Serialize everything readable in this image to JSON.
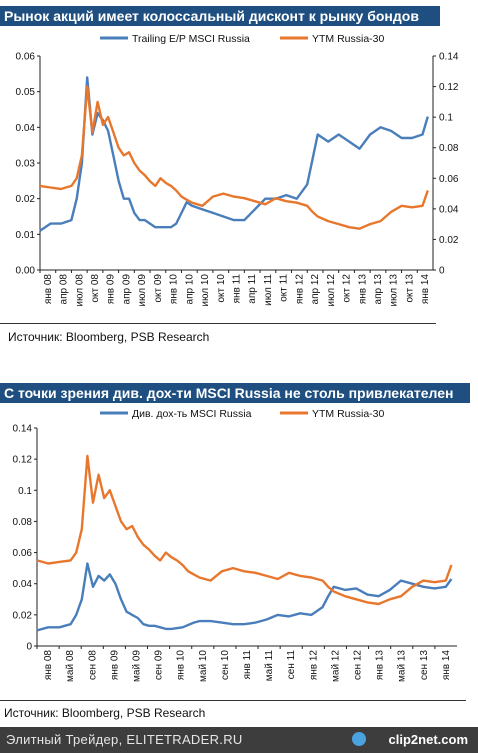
{
  "footer": {
    "text": "Элитный Трейдер, ELITETRADER.RU",
    "brand": "clip2net.com",
    "logo_icon": "clip2net-logo-icon"
  },
  "chart_data": [
    {
      "type": "line",
      "title": "Рынок акций имеет колоссальный дисконт к рынку бондов",
      "source": "Источник: Bloomberg, PSB Research",
      "x_labels": [
        "янв 08",
        "апр 08",
        "июл 08",
        "окт 08",
        "янв 09",
        "апр 09",
        "июл 09",
        "окт 09",
        "янв 10",
        "апр 10",
        "июл 10",
        "окт 10",
        "янв 11",
        "апр 11",
        "июл 11",
        "окт 11",
        "янв 12",
        "апр 12",
        "июл 12",
        "окт 12",
        "янв 13",
        "апр 13",
        "июл 13",
        "окт 13",
        "янв 14"
      ],
      "x_range": [
        "2008-01",
        "2014-04"
      ],
      "y_left": {
        "ticks": [
          "0.00",
          "0.01",
          "0.02",
          "0.03",
          "0.04",
          "0.05",
          "0.06"
        ],
        "range": [
          0,
          0.06
        ]
      },
      "y_right": {
        "ticks": [
          "0",
          "0.02",
          "0.04",
          "0.06",
          "0.08",
          "0.1",
          "0.12",
          "0.14"
        ],
        "range": [
          0,
          0.14
        ]
      },
      "legend_position": "top",
      "series": [
        {
          "name": "Trailing E/P MSCI Russia",
          "axis": "left",
          "color": "#4a7ebb",
          "points": [
            [
              "2008-01",
              0.011
            ],
            [
              "2008-03",
              0.013
            ],
            [
              "2008-05",
              0.013
            ],
            [
              "2008-07",
              0.014
            ],
            [
              "2008-08",
              0.02
            ],
            [
              "2008-09",
              0.03
            ],
            [
              "2008-10",
              0.054
            ],
            [
              "2008-11",
              0.038
            ],
            [
              "2008-12",
              0.044
            ],
            [
              "2009-01",
              0.042
            ],
            [
              "2009-02",
              0.039
            ],
            [
              "2009-03",
              0.032
            ],
            [
              "2009-04",
              0.025
            ],
            [
              "2009-05",
              0.02
            ],
            [
              "2009-06",
              0.02
            ],
            [
              "2009-07",
              0.016
            ],
            [
              "2009-08",
              0.014
            ],
            [
              "2009-09",
              0.014
            ],
            [
              "2009-10",
              0.013
            ],
            [
              "2009-11",
              0.012
            ],
            [
              "2009-12",
              0.012
            ],
            [
              "2010-01",
              0.012
            ],
            [
              "2010-02",
              0.012
            ],
            [
              "2010-03",
              0.013
            ],
            [
              "2010-04",
              0.016
            ],
            [
              "2010-05",
              0.019
            ],
            [
              "2010-06",
              0.018
            ],
            [
              "2010-08",
              0.017
            ],
            [
              "2010-10",
              0.016
            ],
            [
              "2010-12",
              0.015
            ],
            [
              "2011-02",
              0.014
            ],
            [
              "2011-04",
              0.014
            ],
            [
              "2011-06",
              0.017
            ],
            [
              "2011-08",
              0.02
            ],
            [
              "2011-10",
              0.02
            ],
            [
              "2011-12",
              0.021
            ],
            [
              "2012-02",
              0.02
            ],
            [
              "2012-04",
              0.024
            ],
            [
              "2012-05",
              0.031
            ],
            [
              "2012-06",
              0.038
            ],
            [
              "2012-08",
              0.036
            ],
            [
              "2012-10",
              0.038
            ],
            [
              "2012-12",
              0.036
            ],
            [
              "2013-02",
              0.034
            ],
            [
              "2013-04",
              0.038
            ],
            [
              "2013-06",
              0.04
            ],
            [
              "2013-08",
              0.039
            ],
            [
              "2013-10",
              0.037
            ],
            [
              "2013-12",
              0.037
            ],
            [
              "2014-02",
              0.038
            ],
            [
              "2014-03",
              0.043
            ]
          ]
        },
        {
          "name": "YTM Russia-30",
          "axis": "right",
          "color": "#e8772e",
          "points": [
            [
              "2008-01",
              0.055
            ],
            [
              "2008-03",
              0.054
            ],
            [
              "2008-05",
              0.053
            ],
            [
              "2008-07",
              0.055
            ],
            [
              "2008-08",
              0.06
            ],
            [
              "2008-09",
              0.075
            ],
            [
              "2008-10",
              0.12
            ],
            [
              "2008-11",
              0.09
            ],
            [
              "2008-12",
              0.11
            ],
            [
              "2009-01",
              0.095
            ],
            [
              "2009-02",
              0.1
            ],
            [
              "2009-03",
              0.09
            ],
            [
              "2009-04",
              0.08
            ],
            [
              "2009-05",
              0.075
            ],
            [
              "2009-06",
              0.077
            ],
            [
              "2009-07",
              0.07
            ],
            [
              "2009-08",
              0.065
            ],
            [
              "2009-09",
              0.062
            ],
            [
              "2009-10",
              0.058
            ],
            [
              "2009-11",
              0.055
            ],
            [
              "2009-12",
              0.06
            ],
            [
              "2010-01",
              0.057
            ],
            [
              "2010-02",
              0.055
            ],
            [
              "2010-03",
              0.052
            ],
            [
              "2010-04",
              0.048
            ],
            [
              "2010-05",
              0.046
            ],
            [
              "2010-06",
              0.044
            ],
            [
              "2010-08",
              0.042
            ],
            [
              "2010-10",
              0.048
            ],
            [
              "2010-12",
              0.05
            ],
            [
              "2011-02",
              0.048
            ],
            [
              "2011-04",
              0.047
            ],
            [
              "2011-06",
              0.045
            ],
            [
              "2011-08",
              0.043
            ],
            [
              "2011-10",
              0.047
            ],
            [
              "2011-12",
              0.045
            ],
            [
              "2012-02",
              0.044
            ],
            [
              "2012-04",
              0.042
            ],
            [
              "2012-05",
              0.038
            ],
            [
              "2012-06",
              0.035
            ],
            [
              "2012-08",
              0.032
            ],
            [
              "2012-10",
              0.03
            ],
            [
              "2012-12",
              0.028
            ],
            [
              "2013-02",
              0.027
            ],
            [
              "2013-04",
              0.03
            ],
            [
              "2013-06",
              0.032
            ],
            [
              "2013-08",
              0.038
            ],
            [
              "2013-10",
              0.042
            ],
            [
              "2013-12",
              0.041
            ],
            [
              "2014-02",
              0.042
            ],
            [
              "2014-03",
              0.052
            ]
          ]
        }
      ]
    },
    {
      "type": "line",
      "title": "С точки зрения див. дох-ти MSCI Russia не столь привлекателен",
      "source": "Источник: Bloomberg, PSB Research",
      "x_labels": [
        "янв 08",
        "май 08",
        "сен 08",
        "янв 09",
        "май 09",
        "сен 09",
        "янв 10",
        "май 10",
        "сен 10",
        "янв 11",
        "май 11",
        "сен 11",
        "янв 12",
        "май 12",
        "сен 12",
        "янв 13",
        "май 13",
        "сен 13",
        "янв 14"
      ],
      "x_range": [
        "2008-01",
        "2014-04"
      ],
      "y_left": {
        "ticks": [
          "0",
          "0.02",
          "0.04",
          "0.06",
          "0.08",
          "0.1",
          "0.12",
          "0.14"
        ],
        "range": [
          0,
          0.14
        ]
      },
      "legend_position": "top",
      "series": [
        {
          "name": "Див. дох-ть MSCI Russia",
          "axis": "left",
          "color": "#4a7ebb",
          "points": [
            [
              "2008-01",
              0.01
            ],
            [
              "2008-03",
              0.012
            ],
            [
              "2008-05",
              0.012
            ],
            [
              "2008-07",
              0.014
            ],
            [
              "2008-08",
              0.02
            ],
            [
              "2008-09",
              0.03
            ],
            [
              "2008-10",
              0.053
            ],
            [
              "2008-11",
              0.038
            ],
            [
              "2008-12",
              0.045
            ],
            [
              "2009-01",
              0.042
            ],
            [
              "2009-02",
              0.046
            ],
            [
              "2009-03",
              0.04
            ],
            [
              "2009-04",
              0.03
            ],
            [
              "2009-05",
              0.022
            ],
            [
              "2009-06",
              0.02
            ],
            [
              "2009-07",
              0.018
            ],
            [
              "2009-08",
              0.014
            ],
            [
              "2009-09",
              0.013
            ],
            [
              "2009-10",
              0.013
            ],
            [
              "2009-11",
              0.012
            ],
            [
              "2009-12",
              0.011
            ],
            [
              "2010-01",
              0.011
            ],
            [
              "2010-03",
              0.012
            ],
            [
              "2010-05",
              0.015
            ],
            [
              "2010-06",
              0.016
            ],
            [
              "2010-08",
              0.016
            ],
            [
              "2010-10",
              0.015
            ],
            [
              "2010-12",
              0.014
            ],
            [
              "2011-02",
              0.014
            ],
            [
              "2011-04",
              0.015
            ],
            [
              "2011-06",
              0.017
            ],
            [
              "2011-08",
              0.02
            ],
            [
              "2011-10",
              0.019
            ],
            [
              "2011-12",
              0.021
            ],
            [
              "2012-02",
              0.02
            ],
            [
              "2012-04",
              0.025
            ],
            [
              "2012-05",
              0.032
            ],
            [
              "2012-06",
              0.038
            ],
            [
              "2012-08",
              0.036
            ],
            [
              "2012-10",
              0.037
            ],
            [
              "2012-12",
              0.033
            ],
            [
              "2013-02",
              0.032
            ],
            [
              "2013-04",
              0.036
            ],
            [
              "2013-06",
              0.042
            ],
            [
              "2013-08",
              0.04
            ],
            [
              "2013-10",
              0.038
            ],
            [
              "2013-12",
              0.037
            ],
            [
              "2014-02",
              0.038
            ],
            [
              "2014-03",
              0.043
            ]
          ]
        },
        {
          "name": "YTM Russia-30",
          "axis": "left",
          "color": "#e8772e",
          "points": [
            [
              "2008-01",
              0.055
            ],
            [
              "2008-03",
              0.053
            ],
            [
              "2008-05",
              0.054
            ],
            [
              "2008-07",
              0.055
            ],
            [
              "2008-08",
              0.06
            ],
            [
              "2008-09",
              0.075
            ],
            [
              "2008-10",
              0.122
            ],
            [
              "2008-11",
              0.092
            ],
            [
              "2008-12",
              0.11
            ],
            [
              "2009-01",
              0.095
            ],
            [
              "2009-02",
              0.1
            ],
            [
              "2009-03",
              0.09
            ],
            [
              "2009-04",
              0.08
            ],
            [
              "2009-05",
              0.075
            ],
            [
              "2009-06",
              0.077
            ],
            [
              "2009-07",
              0.07
            ],
            [
              "2009-08",
              0.065
            ],
            [
              "2009-09",
              0.062
            ],
            [
              "2009-10",
              0.058
            ],
            [
              "2009-11",
              0.055
            ],
            [
              "2009-12",
              0.06
            ],
            [
              "2010-01",
              0.057
            ],
            [
              "2010-02",
              0.055
            ],
            [
              "2010-03",
              0.052
            ],
            [
              "2010-04",
              0.048
            ],
            [
              "2010-05",
              0.046
            ],
            [
              "2010-06",
              0.044
            ],
            [
              "2010-08",
              0.042
            ],
            [
              "2010-10",
              0.048
            ],
            [
              "2010-12",
              0.05
            ],
            [
              "2011-02",
              0.048
            ],
            [
              "2011-04",
              0.047
            ],
            [
              "2011-06",
              0.045
            ],
            [
              "2011-08",
              0.043
            ],
            [
              "2011-10",
              0.047
            ],
            [
              "2011-12",
              0.045
            ],
            [
              "2012-02",
              0.044
            ],
            [
              "2012-04",
              0.042
            ],
            [
              "2012-05",
              0.038
            ],
            [
              "2012-06",
              0.035
            ],
            [
              "2012-08",
              0.032
            ],
            [
              "2012-10",
              0.03
            ],
            [
              "2012-12",
              0.028
            ],
            [
              "2013-02",
              0.027
            ],
            [
              "2013-04",
              0.03
            ],
            [
              "2013-06",
              0.032
            ],
            [
              "2013-08",
              0.038
            ],
            [
              "2013-10",
              0.042
            ],
            [
              "2013-12",
              0.041
            ],
            [
              "2014-02",
              0.042
            ],
            [
              "2014-03",
              0.052
            ]
          ]
        }
      ]
    }
  ]
}
